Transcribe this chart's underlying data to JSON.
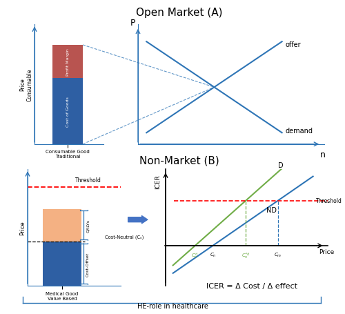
{
  "title_A": "Open Market (A)",
  "title_B": "Non-Market (B)",
  "bottom_label": "HE-role in healthcare",
  "bar_blue_color": "#2E5FA3",
  "bar_red_color": "#B85450",
  "bar_orange_color": "#F4B183",
  "axis_color": "#2E75B6",
  "line_color": "#2E75B6",
  "red_dashed_color": "#FF0000",
  "green_line_color": "#70AD47",
  "text_color": "#000000",
  "label_A_bar": "Consumable Good\nTraditional",
  "label_A_ylabel": "Price\nConsumable",
  "label_A_bar_blue": "Cost of Goods",
  "label_A_bar_red": "Profit Margin",
  "label_supply": "offer",
  "label_demand": "demand",
  "label_xaxis_A": "n",
  "label_yaxis_A": "P",
  "label_B_bar": "Medical Good\nValue Based",
  "label_B_ylabel": "Price",
  "label_B_threshold": "Threshold",
  "label_B_costneutral": "Cost-Neutral (Cₙ)",
  "label_B_qalys": "QALYs",
  "label_B_costoffset": "Cost-Offset",
  "label_B_right_threshold": "Threshold",
  "label_B_xaxis": "Price",
  "label_B_yaxis": "ICER",
  "label_D": "D",
  "label_ND": "ND",
  "icer_formula": "ICER = Δ Cost / Δ effect"
}
